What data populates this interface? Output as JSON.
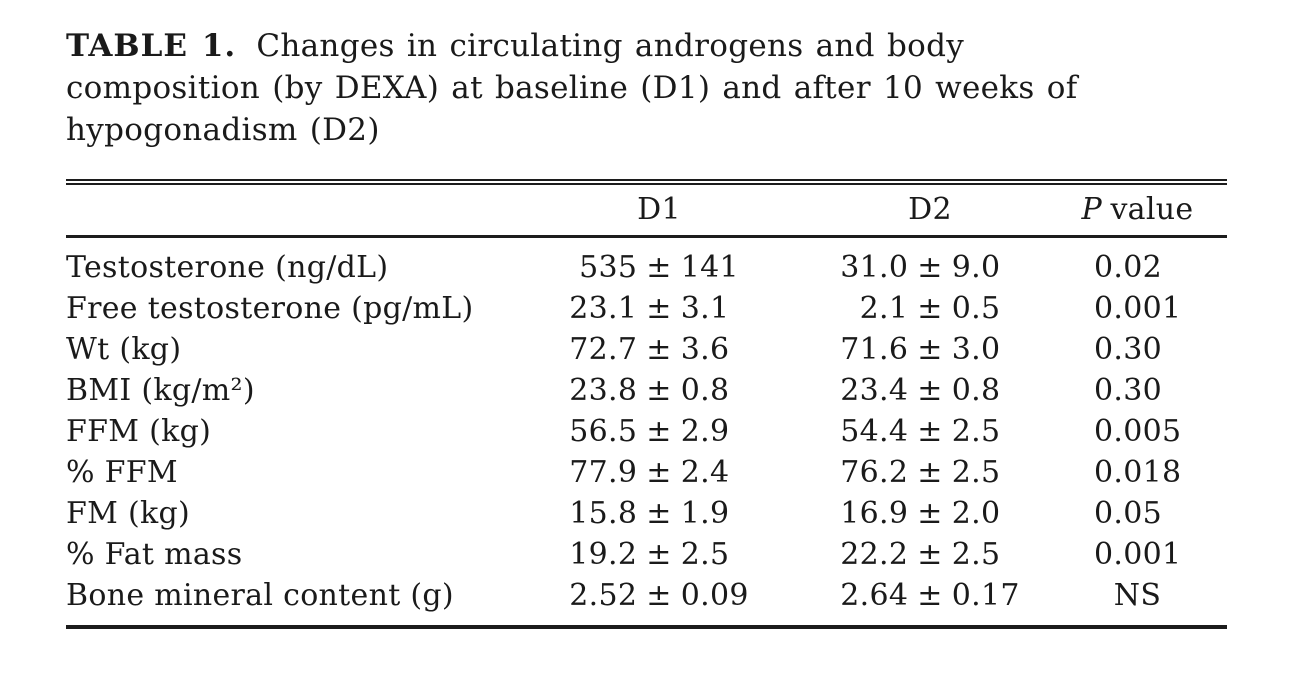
{
  "title": {
    "label": "TABLE 1.",
    "line1": "Changes in circulating androgens and body",
    "line2": "composition (by DEXA) at baseline (D1) and after 10 weeks of",
    "line3": "hypogonadism (D2)"
  },
  "table": {
    "plus_minus": "±",
    "header": {
      "label": "",
      "d1": "D1",
      "d2": "D2",
      "p_italic": "P",
      "p_rest": "value"
    },
    "rows": [
      {
        "label": "Testosterone (ng/dL)",
        "d1_mean": "535",
        "d1_sd": "141",
        "d2_mean": "31.0",
        "d2_sd": "9.0",
        "p": "0.02"
      },
      {
        "label": "Free testosterone (pg/mL)",
        "d1_mean": "23.1",
        "d1_sd": "3.1",
        "d2_mean": "2.1",
        "d2_sd": "0.5",
        "p": "0.001"
      },
      {
        "label": "Wt (kg)",
        "d1_mean": "72.7",
        "d1_sd": "3.6",
        "d2_mean": "71.6",
        "d2_sd": "3.0",
        "p": "0.30"
      },
      {
        "label": "BMI (kg/m²)",
        "d1_mean": "23.8",
        "d1_sd": "0.8",
        "d2_mean": "23.4",
        "d2_sd": "0.8",
        "p": "0.30"
      },
      {
        "label": "FFM (kg)",
        "d1_mean": "56.5",
        "d1_sd": "2.9",
        "d2_mean": "54.4",
        "d2_sd": "2.5",
        "p": "0.005"
      },
      {
        "label": "% FFM",
        "d1_mean": "77.9",
        "d1_sd": "2.4",
        "d2_mean": "76.2",
        "d2_sd": "2.5",
        "p": "0.018"
      },
      {
        "label": "FM (kg)",
        "d1_mean": "15.8",
        "d1_sd": "1.9",
        "d2_mean": "16.9",
        "d2_sd": "2.0",
        "p": "0.05"
      },
      {
        "label": "% Fat mass",
        "d1_mean": "19.2",
        "d1_sd": "2.5",
        "d2_mean": "22.2",
        "d2_sd": "2.5",
        "p": "0.001"
      },
      {
        "label": "Bone mineral content (g)",
        "d1_mean": "2.52",
        "d1_sd": "0.09",
        "d2_mean": "2.64",
        "d2_sd": "0.17",
        "p": "NS"
      }
    ]
  }
}
